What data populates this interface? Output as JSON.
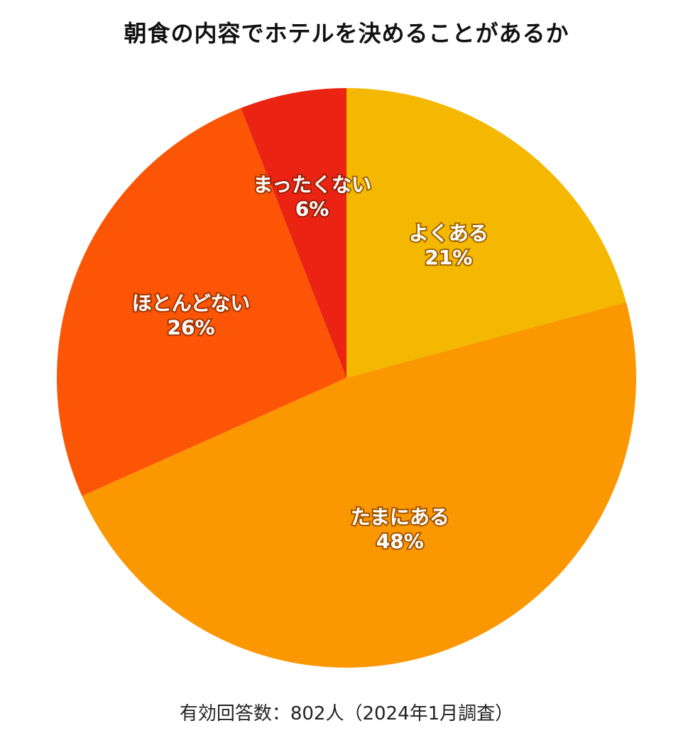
{
  "title": "朝食の内容でホテルを決めることがあるか",
  "footnote": "有効回答数：802人（2024年1月調査）",
  "chart_data": {
    "type": "pie",
    "title": "朝食の内容でホテルを決めることがあるか",
    "start": "12 o'clock",
    "direction": "clockwise",
    "categories": [
      "よくある",
      "たまにある",
      "ほとんどない",
      "まったくない"
    ],
    "values": [
      21,
      48,
      26,
      6
    ],
    "value_labels": [
      "21%",
      "48%",
      "26%",
      "6%"
    ],
    "colors": [
      "#F5B800",
      "#FB9701",
      "#FC5505",
      "#EB2312"
    ],
    "legend": "none"
  }
}
